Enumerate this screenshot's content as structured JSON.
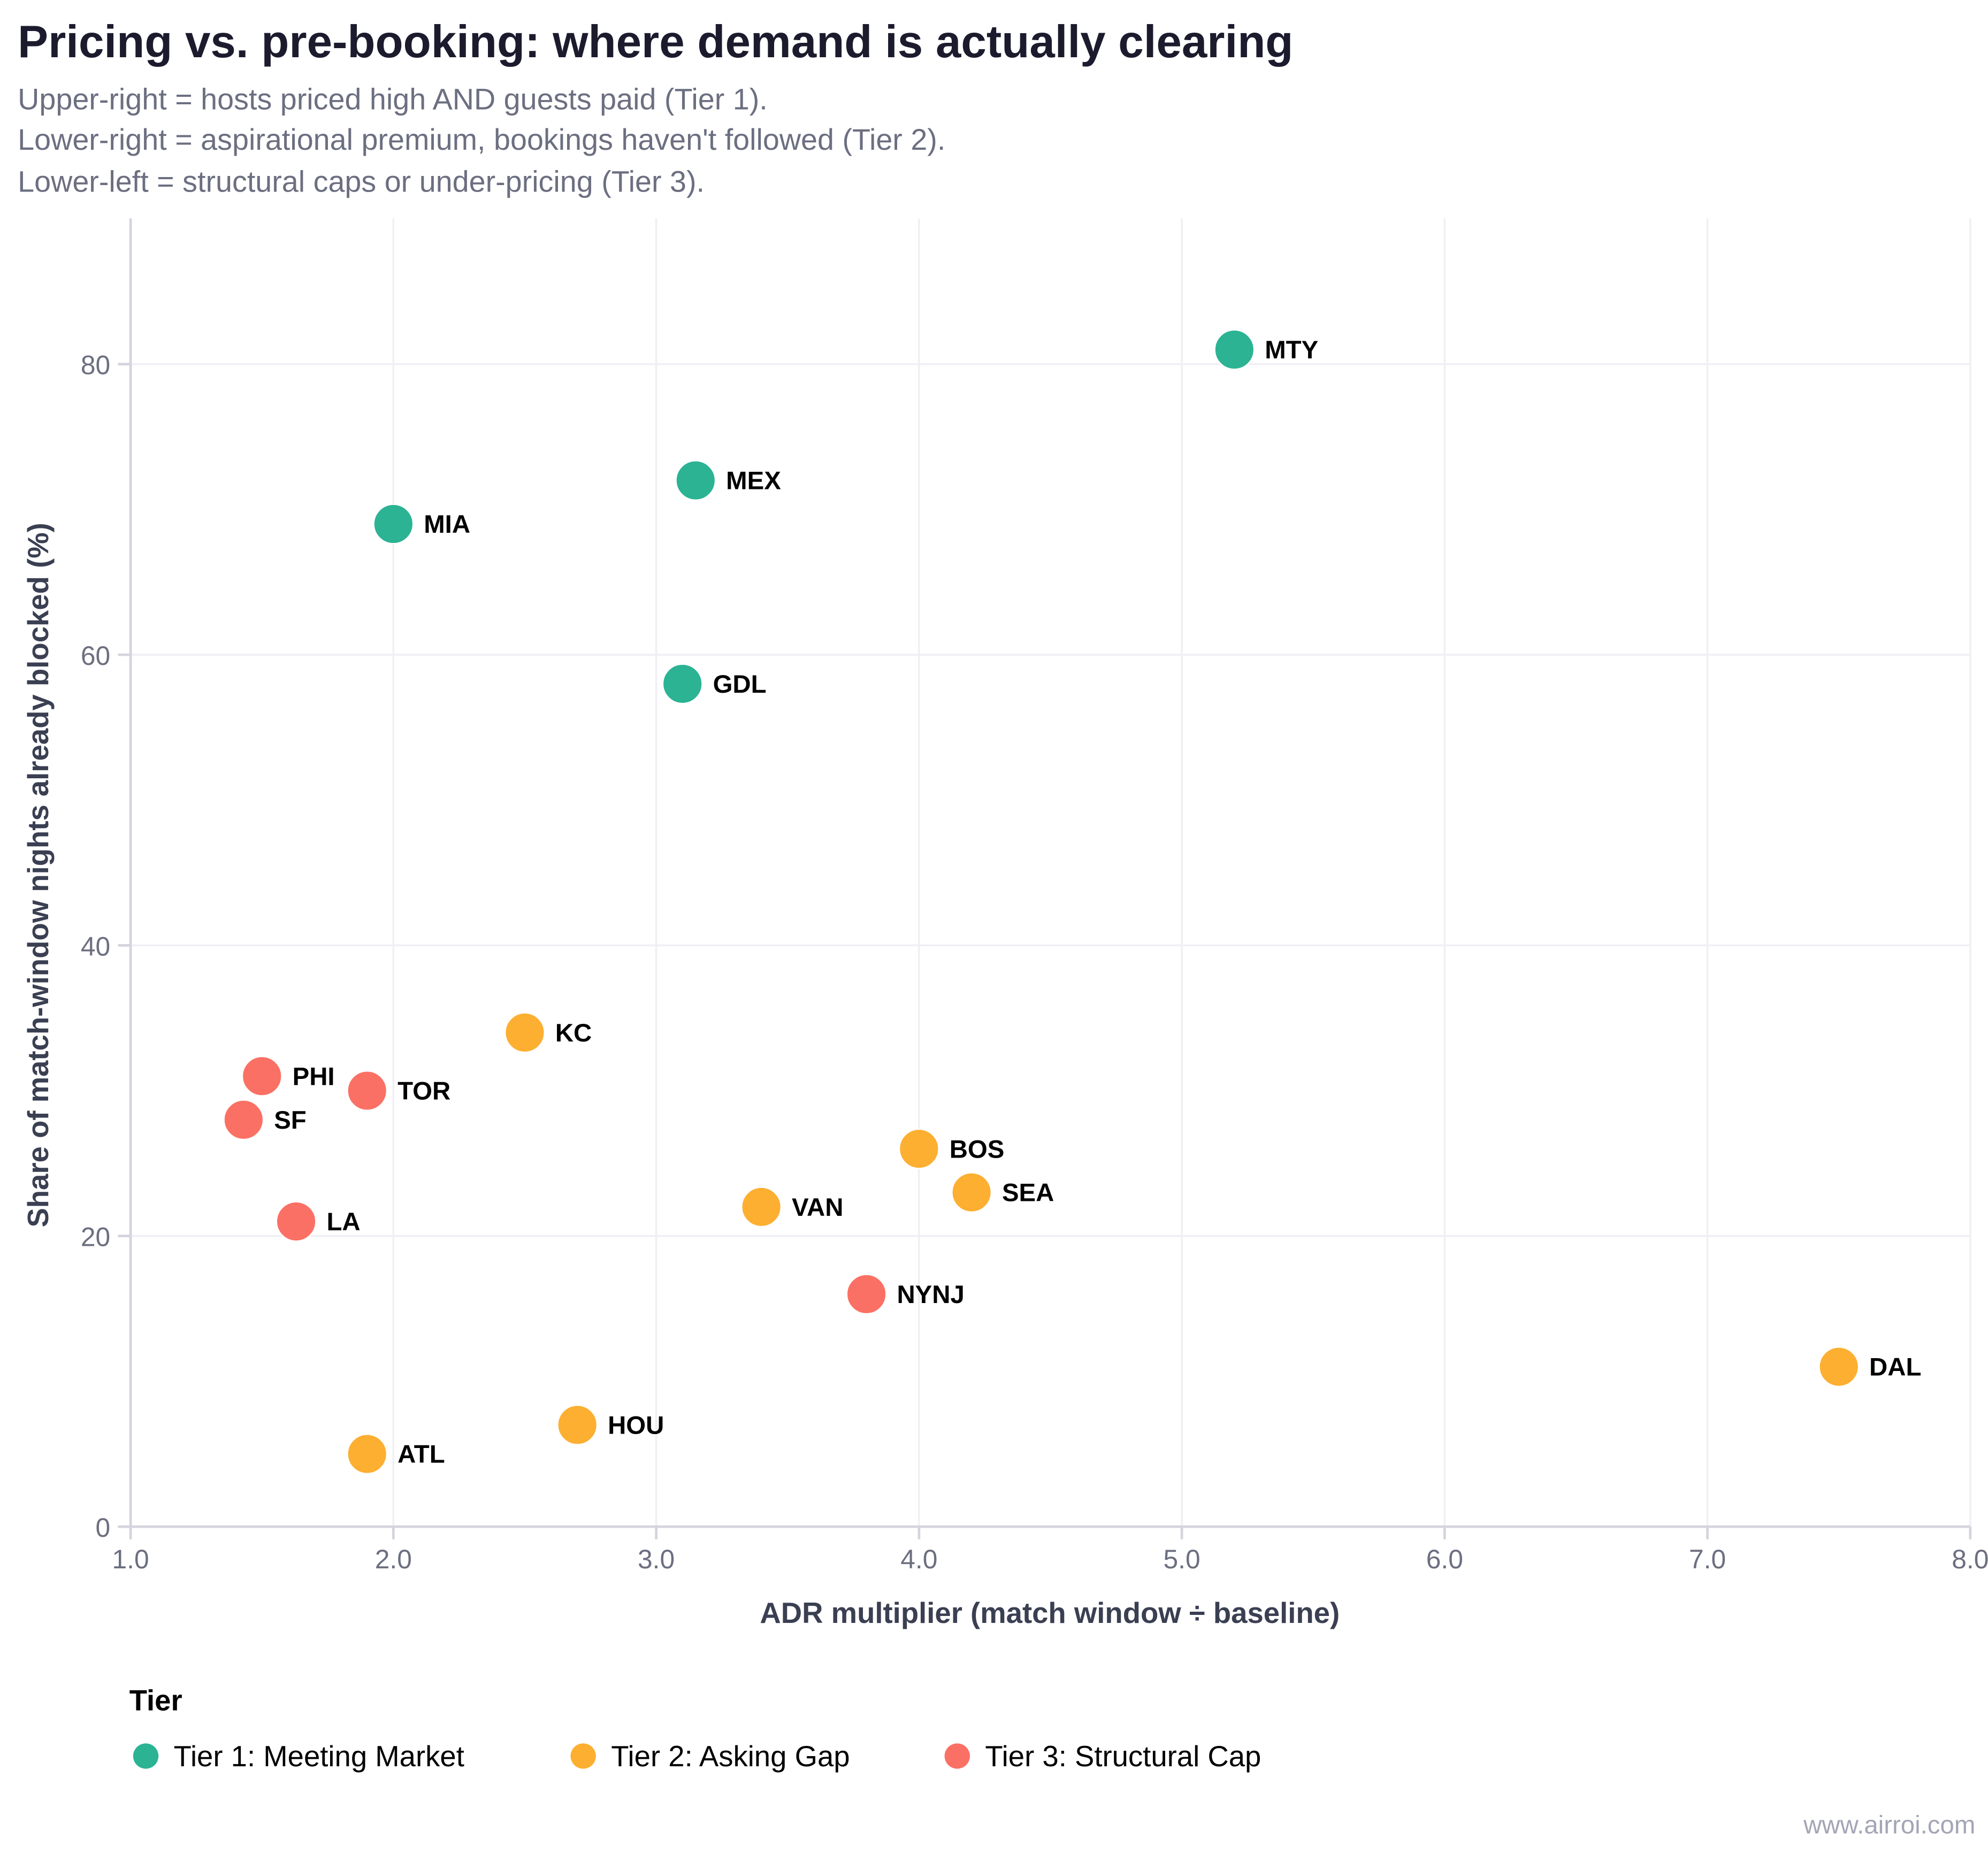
{
  "header": {
    "title": "Pricing vs. pre-booking: where demand is actually clearing",
    "subtitle_lines": [
      "Upper-right = hosts priced high AND guests paid (Tier 1).",
      "Lower-right = aspirational premium, bookings haven't followed (Tier 2).",
      "Lower-left = structural caps or under-pricing (Tier 3)."
    ]
  },
  "watermark": "www.airroi.com",
  "chart_data": {
    "type": "scatter",
    "title": "Pricing vs. pre-booking: where demand is actually clearing",
    "xlabel": "ADR multiplier (match window ÷ baseline)",
    "ylabel": "Share of match-window nights already blocked (%)",
    "xlim": [
      1.0,
      8.0
    ],
    "ylim": [
      0,
      90
    ],
    "xticks": [
      1.0,
      2.0,
      3.0,
      4.0,
      5.0,
      6.0,
      7.0,
      8.0
    ],
    "xtick_labels": [
      "1.0",
      "2.0",
      "3.0",
      "4.0",
      "5.0",
      "6.0",
      "7.0",
      "8.0"
    ],
    "yticks": [
      0,
      20,
      40,
      60,
      80
    ],
    "ytick_labels": [
      "0",
      "20",
      "40",
      "60",
      "80"
    ],
    "grid": true,
    "legend": {
      "title": "Tier",
      "placement": "bottom-left",
      "entries": [
        {
          "name": "Tier 1: Meeting Market",
          "color": "#2bb394"
        },
        {
          "name": "Tier 2: Asking Gap",
          "color": "#fdaf31"
        },
        {
          "name": "Tier 3: Structural Cap",
          "color": "#fb7064"
        }
      ]
    },
    "series": [
      {
        "name": "Tier 1: Meeting Market",
        "color": "#2bb394",
        "points": [
          {
            "label": "MTY",
            "x": 5.2,
            "y": 81
          },
          {
            "label": "MEX",
            "x": 3.15,
            "y": 72
          },
          {
            "label": "MIA",
            "x": 2.0,
            "y": 69
          },
          {
            "label": "GDL",
            "x": 3.1,
            "y": 58
          }
        ]
      },
      {
        "name": "Tier 2: Asking Gap",
        "color": "#fdaf31",
        "points": [
          {
            "label": "KC",
            "x": 2.5,
            "y": 34
          },
          {
            "label": "BOS",
            "x": 4.0,
            "y": 26
          },
          {
            "label": "SEA",
            "x": 4.2,
            "y": 23
          },
          {
            "label": "VAN",
            "x": 3.4,
            "y": 22
          },
          {
            "label": "DAL",
            "x": 7.5,
            "y": 11
          },
          {
            "label": "HOU",
            "x": 2.7,
            "y": 7
          },
          {
            "label": "ATL",
            "x": 1.9,
            "y": 5
          }
        ]
      },
      {
        "name": "Tier 3: Structural Cap",
        "color": "#fb7064",
        "points": [
          {
            "label": "PHI",
            "x": 1.5,
            "y": 31
          },
          {
            "label": "TOR",
            "x": 1.9,
            "y": 30
          },
          {
            "label": "SF",
            "x": 1.43,
            "y": 28
          },
          {
            "label": "LA",
            "x": 1.63,
            "y": 21
          },
          {
            "label": "NYNJ",
            "x": 3.8,
            "y": 16
          }
        ]
      }
    ]
  }
}
